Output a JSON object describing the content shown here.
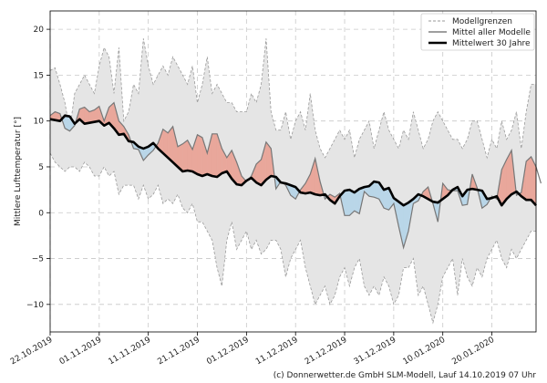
{
  "chart_data": {
    "type": "line",
    "ylabel": "Mittlere Lufttemperatur [°]",
    "ylim": [
      -13,
      22
    ],
    "y_ticks": [
      -10,
      -5,
      0,
      5,
      10,
      15,
      20
    ],
    "x_tick_labels": [
      "22.10.2019",
      "01.11.2019",
      "11.11.2019",
      "21.11.2019",
      "01.12.2019",
      "11.12.2019",
      "21.12.2019",
      "31.12.2019",
      "10.01.2020",
      "20.01.2020"
    ],
    "x_tick_days": [
      0,
      10,
      20,
      30,
      40,
      50,
      60,
      70,
      80,
      90
    ],
    "x_range_days": [
      0,
      99
    ],
    "grid": true,
    "legend_position": "top-right",
    "legend": {
      "bounds": "Modellgrenzen",
      "mean_models": "Mittel aller Modelle",
      "mean_30y": "Mittelwert 30 Jahre"
    },
    "colors": {
      "band": "#e5e5e5",
      "bounds_line": "#9a9a9a",
      "mean_models_line": "#777777",
      "mean_30y_line": "#000000",
      "warm_fill": "#e9a79b",
      "cold_fill": "#b9d6e8"
    },
    "series": [
      {
        "name": "Modellgrenzen",
        "key": "upper",
        "values": [
          15.5,
          15.8,
          14,
          12,
          9,
          13,
          14,
          15,
          14,
          13,
          16,
          18,
          17,
          13,
          18,
          10,
          11,
          14,
          13,
          19,
          16,
          14,
          15,
          16,
          15,
          17,
          16,
          15,
          14,
          16,
          12,
          14,
          17,
          13,
          14,
          13,
          12,
          12,
          11,
          11,
          11,
          13,
          12,
          14,
          19,
          11,
          9,
          9,
          11,
          8,
          10,
          11,
          9,
          13,
          9,
          7,
          6,
          7,
          8,
          9,
          8,
          9,
          6,
          8,
          9,
          10,
          7,
          9,
          11,
          9,
          8,
          7,
          9,
          8,
          11,
          9,
          7,
          8,
          10,
          11,
          10,
          9,
          8,
          8,
          7,
          8,
          10,
          10,
          8,
          6,
          8,
          7,
          10,
          8,
          9,
          11,
          7,
          11,
          14,
          14
        ]
      },
      {
        "name": "Modellgrenzen",
        "key": "lower",
        "values": [
          6.5,
          5.5,
          5,
          4.5,
          5,
          5,
          4.5,
          5.5,
          5,
          4,
          4,
          5,
          4,
          4.5,
          2,
          3,
          3,
          3,
          1.5,
          3,
          1.5,
          2,
          3,
          1,
          1.5,
          1,
          2,
          0.5,
          0,
          1,
          -1,
          -1,
          -2,
          -3,
          -6,
          -8,
          -3,
          -1,
          -4,
          -3,
          -2,
          -4,
          -3,
          -4.5,
          -4,
          -3,
          -3,
          -4,
          -7,
          -5,
          -4,
          -3,
          -6,
          -8,
          -10,
          -9,
          -8,
          -10,
          -9,
          -7,
          -6,
          -8,
          -6,
          -5,
          -8,
          -9,
          -8,
          -9,
          -7,
          -8,
          -10,
          -9,
          -6,
          -6,
          -5,
          -9,
          -8,
          -10,
          -12,
          -10,
          -7,
          -6,
          -5,
          -9,
          -5,
          -7,
          -8,
          -6,
          -7,
          -5,
          -4,
          -3,
          -5,
          -6,
          -4,
          -5,
          -4,
          -3,
          -2,
          -2
        ]
      },
      {
        "name": "Mittel aller Modelle",
        "key": "mean_models",
        "values": [
          10.6,
          11.0,
          10.8,
          9.2,
          8.9,
          9.5,
          11.3,
          11.5,
          11.0,
          11.2,
          11.6,
          10.0,
          11.5,
          12.0,
          10.0,
          9.4,
          8.5,
          7.0,
          6.9,
          5.7,
          6.3,
          6.8,
          7.6,
          9.1,
          8.7,
          9.4,
          7.2,
          7.5,
          7.9,
          6.9,
          8.5,
          8.2,
          6.5,
          8.6,
          8.6,
          7.0,
          6.0,
          6.8,
          5.5,
          4.0,
          3.4,
          4.0,
          5.3,
          5.8,
          7.7,
          7.0,
          2.6,
          3.4,
          3.0,
          1.9,
          1.5,
          2.5,
          3.2,
          4.2,
          5.9,
          3.4,
          1.5,
          2.0,
          1.7,
          2.1,
          -0.3,
          -0.3,
          0.2,
          -0.1,
          2.3,
          1.8,
          1.7,
          1.5,
          0.5,
          0.3,
          1.0,
          -1.5,
          -3.8,
          -2.0,
          1.0,
          1.3,
          2.3,
          2.8,
          1.0,
          -1.0,
          3.2,
          2.5,
          2.4,
          2.4,
          0.8,
          0.9,
          4.2,
          2.7,
          0.5,
          0.9,
          1.8,
          1.5,
          4.7,
          5.8,
          6.8,
          1.9,
          2.2,
          5.6,
          6.1,
          5.0,
          3.2
        ]
      },
      {
        "name": "Mittelwert 30 Jahre",
        "key": "mean_30y",
        "values": [
          10.2,
          10.1,
          10.0,
          10.6,
          10.5,
          9.7,
          10.2,
          9.7,
          9.8,
          9.9,
          10.0,
          9.5,
          9.8,
          9.2,
          8.5,
          8.6,
          7.8,
          7.7,
          7.2,
          7.0,
          7.2,
          7.6,
          7.0,
          6.5,
          6.0,
          5.5,
          5.0,
          4.5,
          4.6,
          4.5,
          4.2,
          4.0,
          4.2,
          4.0,
          3.9,
          4.3,
          4.5,
          3.7,
          3.1,
          3.0,
          3.5,
          3.8,
          3.3,
          3.0,
          3.6,
          4.0,
          3.9,
          3.3,
          3.2,
          3.0,
          2.8,
          2.2,
          2.1,
          2.2,
          2.0,
          1.9,
          2.0,
          1.4,
          1.0,
          1.8,
          2.4,
          2.5,
          2.2,
          2.6,
          2.8,
          2.9,
          3.4,
          3.3,
          2.5,
          2.7,
          1.6,
          1.2,
          0.8,
          1.1,
          1.5,
          2.0,
          1.8,
          1.5,
          1.2,
          1.1,
          1.5,
          1.9,
          2.5,
          2.8,
          1.8,
          2.5,
          2.6,
          2.5,
          2.4,
          1.5,
          1.6,
          1.8,
          0.8,
          1.5,
          2.0,
          2.3,
          1.8,
          1.4,
          1.4,
          0.8
        ]
      }
    ]
  },
  "footer": "(c) Donnerwetter.de GmbH SLM-Modell, Lauf 14.10.2019 07 Uhr"
}
